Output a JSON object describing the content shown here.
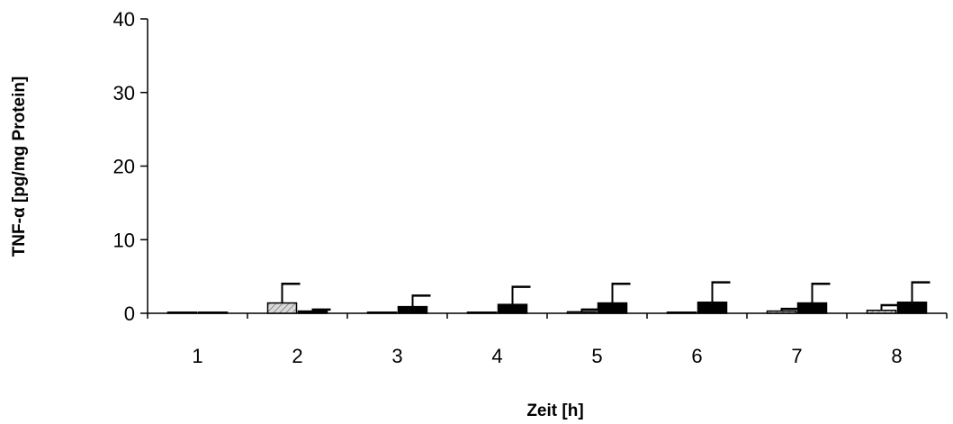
{
  "chart_data": {
    "type": "bar",
    "title": "",
    "xlabel": "Zeit [h]",
    "ylabel": "TNF-α [pg/mg Protein]",
    "categories": [
      "1",
      "2",
      "3",
      "4",
      "5",
      "6",
      "7",
      "8"
    ],
    "ylim": [
      0,
      40
    ],
    "yticks": [
      0,
      10,
      20,
      30,
      40
    ],
    "grid": false,
    "legend": "none",
    "series": [
      {
        "values": [
          0,
          1.4,
          0,
          0,
          0.2,
          0,
          0.3,
          0.4
        ],
        "errors": [
          0,
          2.6,
          0,
          0,
          0.3,
          0,
          0.3,
          0.7
        ],
        "color": "#cfcfcf",
        "pattern": "hatched"
      },
      {
        "values": [
          0,
          0.3,
          0.9,
          1.2,
          1.4,
          1.5,
          1.4,
          1.5
        ],
        "errors": [
          0,
          0.2,
          1.5,
          2.4,
          2.6,
          2.7,
          2.6,
          2.7
        ],
        "color": "#000000",
        "pattern": "solid"
      }
    ]
  }
}
